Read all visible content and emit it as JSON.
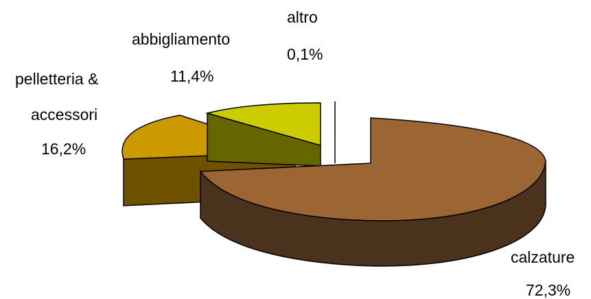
{
  "chart_data": {
    "type": "pie",
    "title": "",
    "variant": "3d-exploded",
    "slices": [
      {
        "label": "calzature",
        "value": 72.3,
        "value_label": "72,3%",
        "color": "#9C6634"
      },
      {
        "label": "altro",
        "value": 0.1,
        "value_label": "0,1%",
        "color": "#FFFFFF"
      },
      {
        "label": "abbigliamento",
        "value": 11.4,
        "value_label": "11,4%",
        "color": "#CCCC00"
      },
      {
        "label": "pelletteria &",
        "label_line2": "accessori",
        "value": 16.2,
        "value_label": "16,2%",
        "color": "#CC9900"
      }
    ],
    "legend": "none",
    "grid": false
  }
}
